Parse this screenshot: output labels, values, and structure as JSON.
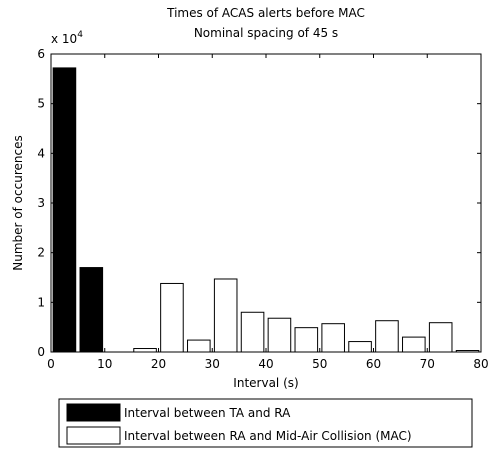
{
  "chart_data": {
    "type": "bar",
    "title": [
      "Times of ACAS alerts before MAC",
      "Nominal spacing of 45 s"
    ],
    "xlabel": "Interval (s)",
    "ylabel": "Number of occurences",
    "multiplier_label": "x 10",
    "multiplier_exponent": "4",
    "xlim": [
      0,
      80
    ],
    "ylim": [
      0,
      6
    ],
    "xticks": [
      0,
      10,
      20,
      30,
      40,
      50,
      60,
      70,
      80
    ],
    "yticks": [
      0,
      1,
      2,
      3,
      4,
      5,
      6
    ],
    "bar_width": 4.2,
    "series": [
      {
        "name": "Interval between TA and RA",
        "fill": "#000000",
        "x": [
          2.5,
          7.5,
          12.5
        ],
        "values": [
          5.72,
          1.7,
          0.0
        ]
      },
      {
        "name": "Interval between RA and Mid-Air Collision (MAC)",
        "fill": "#ffffff",
        "x": [
          17.5,
          22.5,
          27.5,
          32.5,
          37.5,
          42.5,
          47.5,
          52.5,
          57.5,
          62.5,
          67.5,
          72.5,
          77.5
        ],
        "values": [
          0.07,
          1.38,
          0.24,
          1.47,
          0.8,
          0.68,
          0.49,
          0.57,
          0.21,
          0.63,
          0.3,
          0.59,
          0.03
        ]
      }
    ],
    "legend_position": "bottom"
  }
}
